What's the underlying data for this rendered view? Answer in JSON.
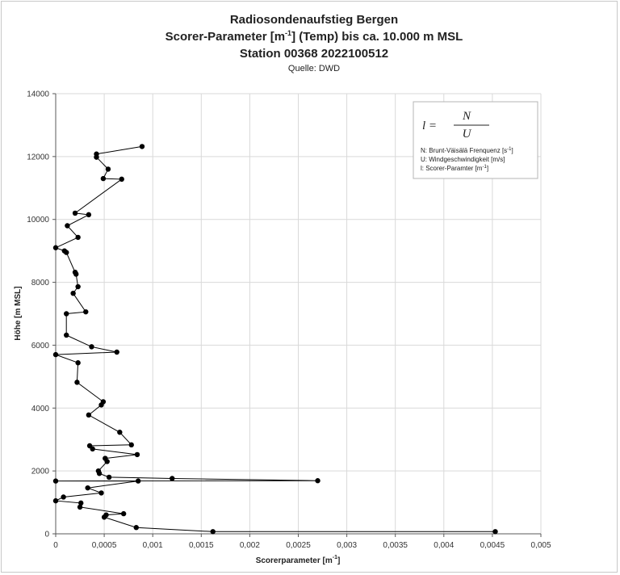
{
  "chart_data": {
    "type": "line",
    "title_line1": "Radiosondenaufstieg Bergen",
    "title_line2_pre": "Scorer-Parameter [m",
    "title_line2_sup": "-1",
    "title_line2_post": "] (Temp) bis ca. 10.000 m MSL",
    "title_line3": "Station 00368 2022100512",
    "subtitle": "Quelle: DWD",
    "xlabel": "Scorerparameter [m",
    "xlabel_sup": "-1",
    "xlabel_post": "]",
    "ylabel": "Höhe [m MSL]",
    "xlim": [
      0,
      0.005
    ],
    "ylim": [
      0,
      14000
    ],
    "x_ticks": [
      0,
      0.0005,
      0.001,
      0.0015,
      0.002,
      0.0025,
      0.003,
      0.0035,
      0.004,
      0.0045,
      0.005
    ],
    "x_tick_labels": [
      "0",
      "0,0005",
      "0,001",
      "0,0015",
      "0,002",
      "0,0025",
      "0,003",
      "0,0035",
      "0,004",
      "0,0045",
      "0,005"
    ],
    "y_ticks": [
      0,
      2000,
      4000,
      6000,
      8000,
      10000,
      12000,
      14000
    ],
    "y_tick_labels": [
      "0",
      "2000",
      "4000",
      "6000",
      "8000",
      "10000",
      "12000",
      "14000"
    ],
    "grid": true,
    "legend_position": "top-right",
    "line_color": "#000000",
    "marker_color": "#000000",
    "legend": {
      "formula_lhs": "l =",
      "formula_num": "N",
      "formula_den": "U",
      "line1_pre": "N: Brunt-Väisälä Frenquenz [s",
      "line1_sup": "-1",
      "line1_post": "]",
      "line2": "U: Windgeschwindigkeit [m/s]",
      "line3_pre": "l: Scorer-Paramter [m",
      "line3_sup": "-1",
      "line3_post": "]"
    },
    "points": [
      {
        "x": 0.00453,
        "y": 70
      },
      {
        "x": 0.00162,
        "y": 70
      },
      {
        "x": 0.00083,
        "y": 200
      },
      {
        "x": 0.0005,
        "y": 530
      },
      {
        "x": 0.00052,
        "y": 600
      },
      {
        "x": 0.0007,
        "y": 640
      },
      {
        "x": 0.00025,
        "y": 850
      },
      {
        "x": 0.00026,
        "y": 980
      },
      {
        "x": 0.0,
        "y": 1050
      },
      {
        "x": 8e-05,
        "y": 1170
      },
      {
        "x": 0.00047,
        "y": 1300
      },
      {
        "x": 0.00033,
        "y": 1460
      },
      {
        "x": 0.00085,
        "y": 1680
      },
      {
        "x": 0.0,
        "y": 1680
      },
      {
        "x": 0.0027,
        "y": 1690
      },
      {
        "x": 0.0012,
        "y": 1760
      },
      {
        "x": 0.00055,
        "y": 1800
      },
      {
        "x": 0.00045,
        "y": 1920
      },
      {
        "x": 0.00044,
        "y": 2000
      },
      {
        "x": 0.00053,
        "y": 2300
      },
      {
        "x": 0.00051,
        "y": 2400
      },
      {
        "x": 0.00084,
        "y": 2520
      },
      {
        "x": 0.00038,
        "y": 2700
      },
      {
        "x": 0.00035,
        "y": 2800
      },
      {
        "x": 0.00078,
        "y": 2830
      },
      {
        "x": 0.00066,
        "y": 3230
      },
      {
        "x": 0.00034,
        "y": 3780
      },
      {
        "x": 0.00047,
        "y": 4100
      },
      {
        "x": 0.00049,
        "y": 4200
      },
      {
        "x": 0.00022,
        "y": 4820
      },
      {
        "x": 0.00023,
        "y": 5440
      },
      {
        "x": 0.0,
        "y": 5700
      },
      {
        "x": 0.00063,
        "y": 5780
      },
      {
        "x": 0.00037,
        "y": 5950
      },
      {
        "x": 0.00011,
        "y": 6320
      },
      {
        "x": 0.00011,
        "y": 7000
      },
      {
        "x": 0.00031,
        "y": 7060
      },
      {
        "x": 0.00018,
        "y": 7650
      },
      {
        "x": 0.00023,
        "y": 7860
      },
      {
        "x": 0.00021,
        "y": 8260
      },
      {
        "x": 0.0002,
        "y": 8320
      },
      {
        "x": 0.00011,
        "y": 8950
      },
      {
        "x": 9e-05,
        "y": 9000
      },
      {
        "x": 0.0,
        "y": 9100
      },
      {
        "x": 0.00023,
        "y": 9430
      },
      {
        "x": 0.00012,
        "y": 9800
      },
      {
        "x": 0.00034,
        "y": 10150
      },
      {
        "x": 0.0002,
        "y": 10200
      },
      {
        "x": 0.00068,
        "y": 11280
      },
      {
        "x": 0.00049,
        "y": 11300
      },
      {
        "x": 0.00054,
        "y": 11600
      },
      {
        "x": 0.00042,
        "y": 11980
      },
      {
        "x": 0.00042,
        "y": 12080
      },
      {
        "x": 0.00089,
        "y": 12320
      }
    ]
  }
}
